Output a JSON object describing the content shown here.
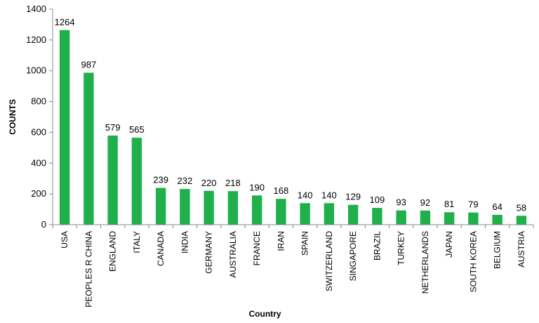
{
  "chart_data": {
    "type": "bar",
    "xlabel": "Country",
    "ylabel": "COUNTS",
    "ylim": [
      0,
      1400
    ],
    "yticks": [
      0,
      200,
      400,
      600,
      800,
      1000,
      1200,
      1400
    ],
    "grid": false,
    "bar_color": "#1fb04a",
    "categories": [
      "USA",
      "PEOPLES R CHINA",
      "ENGLAND",
      "ITALY",
      "CANADA",
      "INDIA",
      "GERMANY",
      "AUSTRALIA",
      "FRANCE",
      "IRAN",
      "SPAIN",
      "SWITZERLAND",
      "SINGAPORE",
      "BRAZIL",
      "TURKEY",
      "NETHERLANDS",
      "JAPAN",
      "SOUTH KOREA",
      "BELGIUM",
      "AUSTRIA"
    ],
    "values": [
      1264,
      987,
      579,
      565,
      239,
      232,
      220,
      218,
      190,
      168,
      140,
      140,
      129,
      109,
      93,
      92,
      81,
      79,
      64,
      58
    ]
  }
}
